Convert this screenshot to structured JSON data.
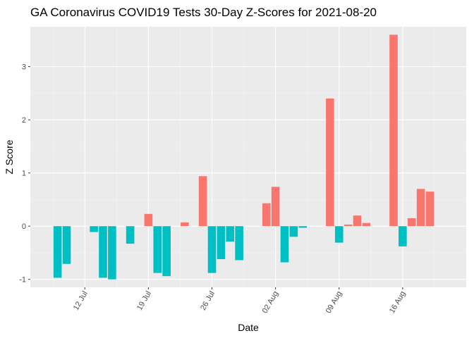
{
  "chart_data": {
    "type": "bar",
    "title": "GA Coronavirus COVID19 Tests 30-Day Z-Scores for 2021-08-20",
    "xlabel": "Date",
    "ylabel": "Z Score",
    "ylim": [
      -1.15,
      3.75
    ],
    "y_ticks": [
      -1,
      0,
      1,
      2,
      3
    ],
    "x_ticks": [
      {
        "label": "12 Jul",
        "date": "2021-07-12"
      },
      {
        "label": "19 Jul",
        "date": "2021-07-19"
      },
      {
        "label": "26 Jul",
        "date": "2021-07-26"
      },
      {
        "label": "02 Aug",
        "date": "2021-08-02"
      },
      {
        "label": "09 Aug",
        "date": "2021-08-09"
      },
      {
        "label": "16 Aug",
        "date": "2021-08-16"
      }
    ],
    "x_range": [
      "2021-07-06",
      "2021-08-23"
    ],
    "grid": true,
    "legend": "none",
    "colors": {
      "positive": "#F8766D",
      "negative": "#00BFC4",
      "panel": "#EBEBEB",
      "grid_major": "#FFFFFF",
      "grid_minor": "#F5F5F5"
    },
    "x": [
      "2021-07-09",
      "2021-07-10",
      "2021-07-11",
      "2021-07-12",
      "2021-07-13",
      "2021-07-14",
      "2021-07-15",
      "2021-07-16",
      "2021-07-17",
      "2021-07-18",
      "2021-07-19",
      "2021-07-20",
      "2021-07-21",
      "2021-07-22",
      "2021-07-23",
      "2021-07-24",
      "2021-07-25",
      "2021-07-26",
      "2021-07-27",
      "2021-07-28",
      "2021-07-29",
      "2021-07-30",
      "2021-07-31",
      "2021-08-01",
      "2021-08-02",
      "2021-08-03",
      "2021-08-04",
      "2021-08-05",
      "2021-08-06",
      "2021-08-07",
      "2021-08-08",
      "2021-08-09",
      "2021-08-10",
      "2021-08-11",
      "2021-08-12",
      "2021-08-13",
      "2021-08-14",
      "2021-08-15",
      "2021-08-16",
      "2021-08-17",
      "2021-08-18",
      "2021-08-19",
      "2021-08-20"
    ],
    "values": [
      -0.97,
      -0.71,
      0,
      0,
      -0.11,
      -0.97,
      -1.0,
      0,
      -0.33,
      0,
      0.23,
      -0.88,
      -0.94,
      0,
      0.07,
      0,
      0.94,
      -0.88,
      -0.62,
      -0.29,
      -0.64,
      0,
      0,
      0.43,
      0.74,
      -0.68,
      -0.2,
      -0.03,
      0,
      0,
      2.4,
      -0.31,
      0.03,
      0.2,
      0.06,
      0,
      0,
      3.6,
      -0.38,
      0.15,
      0.7,
      0.65,
      0
    ]
  }
}
